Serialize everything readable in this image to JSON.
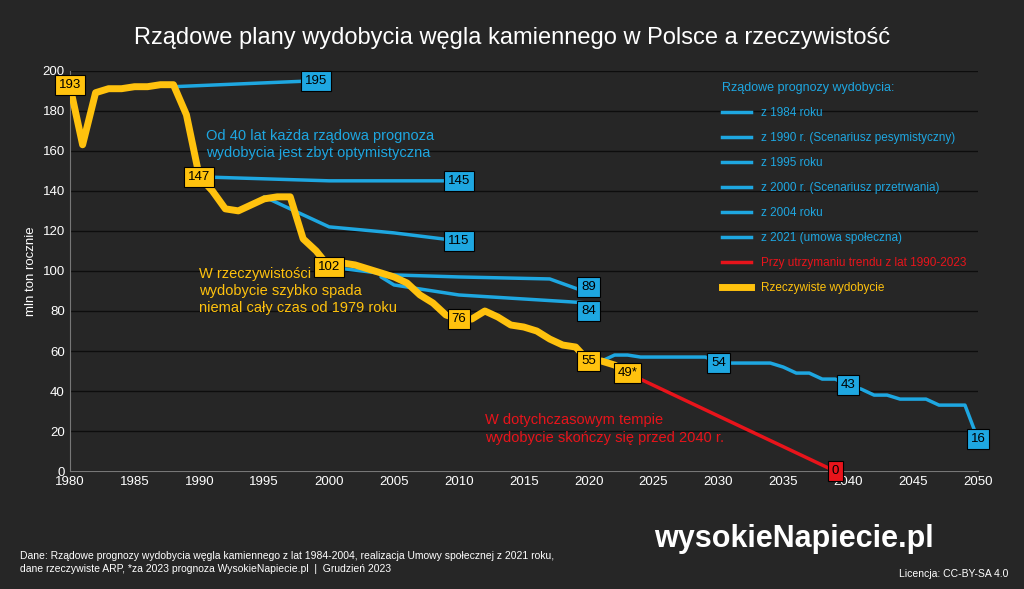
{
  "chart_data": {
    "type": "line",
    "title": "Rządowe plany wydobycia węgla kamiennego w Polsce a rzeczywistość",
    "y_label": "mln ton rocznie",
    "xlim": [
      1980,
      2050
    ],
    "xticks": [
      1980,
      1985,
      1990,
      1995,
      2000,
      2005,
      2010,
      2015,
      2020,
      2025,
      2030,
      2035,
      2040,
      2045,
      2050
    ],
    "ylim": [
      0,
      200
    ],
    "yticks": [
      0,
      20,
      40,
      60,
      80,
      100,
      120,
      140,
      160,
      180,
      200
    ],
    "grid": true,
    "legend": "upper right",
    "legend_title": "Rządowe prognozy wydobycia:",
    "data_labels": true,
    "series": [
      {
        "name": "z 1984 roku",
        "color": "#1ea7e1",
        "x": [
          1988,
          1999
        ],
        "values": [
          192,
          195
        ],
        "value_labels": [
          null,
          "195"
        ]
      },
      {
        "name": "z 1990 r. (Scenariusz pesymistyczny)",
        "color": "#1ea7e1",
        "x": [
          1990,
          1995,
          2000,
          2010
        ],
        "values": [
          147,
          146,
          145,
          145
        ],
        "value_labels": [
          null,
          null,
          null,
          "145"
        ]
      },
      {
        "name": "z 1995 roku",
        "color": "#1ea7e1",
        "x": [
          1995,
          2000,
          2005,
          2010
        ],
        "values": [
          137,
          122,
          119,
          115
        ],
        "value_labels": [
          null,
          null,
          null,
          "115"
        ]
      },
      {
        "name": "z 2000 r. (Scenariusz przetrwania)",
        "color": "#1ea7e1",
        "x": [
          2000,
          2005,
          2010,
          2017,
          2020
        ],
        "values": [
          102,
          98,
          97,
          96,
          89
        ],
        "value_labels": [
          null,
          null,
          null,
          null,
          "89"
        ]
      },
      {
        "name": "z 2004 roku",
        "color": "#1ea7e1",
        "x": [
          2004,
          2005,
          2010,
          2015,
          2020
        ],
        "values": [
          97,
          93,
          88,
          86,
          84
        ],
        "value_labels": [
          null,
          null,
          null,
          null,
          "84"
        ]
      },
      {
        "name": "z 2021 (umowa społeczna)",
        "color": "#1ea7e1",
        "x": [
          2021,
          2022,
          2023,
          2024,
          2025,
          2026,
          2027,
          2028,
          2029,
          2030,
          2031,
          2032,
          2033,
          2034,
          2035,
          2036,
          2037,
          2038,
          2039,
          2040,
          2041,
          2042,
          2043,
          2044,
          2045,
          2046,
          2047,
          2048,
          2049,
          2050
        ],
        "values": [
          55,
          58,
          58,
          57,
          57,
          57,
          57,
          57,
          57,
          54,
          54,
          54,
          54,
          54,
          52,
          49,
          49,
          46,
          46,
          43,
          41,
          38,
          38,
          36,
          36,
          36,
          33,
          33,
          33,
          16
        ],
        "value_labels": [
          null,
          null,
          null,
          null,
          null,
          null,
          null,
          null,
          null,
          "54",
          null,
          null,
          null,
          null,
          null,
          null,
          null,
          null,
          null,
          "43",
          null,
          null,
          null,
          null,
          null,
          null,
          null,
          null,
          null,
          "16"
        ]
      },
      {
        "name": "Przy utrzymaniu trendu z lat 1990-2023",
        "color": "#e8141b",
        "x": [
          2023,
          2039
        ],
        "values": [
          49,
          0
        ],
        "value_labels": [
          null,
          "0"
        ]
      },
      {
        "name": "Rzeczywiste wydobycie",
        "color": "#ffc20e",
        "x": [
          1980,
          1981,
          1982,
          1983,
          1984,
          1985,
          1986,
          1987,
          1988,
          1989,
          1990,
          1991,
          1992,
          1993,
          1994,
          1995,
          1996,
          1997,
          1998,
          1999,
          2000,
          2001,
          2002,
          2003,
          2004,
          2005,
          2006,
          2007,
          2008,
          2009,
          2010,
          2011,
          2012,
          2013,
          2014,
          2015,
          2016,
          2017,
          2018,
          2019,
          2020,
          2021,
          2022,
          2023
        ],
        "values": [
          193,
          163,
          189,
          191,
          191,
          192,
          192,
          193,
          193,
          178,
          147,
          140,
          131,
          130,
          133,
          136,
          137,
          137,
          116,
          110,
          102,
          104,
          103,
          101,
          99,
          97,
          94,
          88,
          84,
          78,
          76,
          76,
          80,
          77,
          73,
          72,
          70,
          66,
          63,
          62,
          55,
          55,
          53,
          49
        ],
        "value_labels": [
          "193",
          null,
          null,
          null,
          null,
          null,
          null,
          null,
          null,
          null,
          "147",
          null,
          null,
          null,
          null,
          null,
          null,
          null,
          null,
          null,
          "102",
          null,
          null,
          null,
          null,
          null,
          null,
          null,
          null,
          null,
          "76",
          null,
          null,
          null,
          null,
          null,
          null,
          null,
          null,
          null,
          "55",
          null,
          null,
          "49*"
        ]
      }
    ],
    "annotations": [
      {
        "text": "Od 40 lat każda rządowa prognoza\nwydobycia jest zbyt optymistyczna",
        "color": "#1ea7e1"
      },
      {
        "text": "W rzeczywistości\nwydobycie szybko spada\nniemal cały czas od 1979 roku",
        "color": "#ffc20e"
      },
      {
        "text": "W dotychczasowym tempie\nwydobycie skończy się przed 2040 r.",
        "color": "#e8141b"
      }
    ],
    "source": "Dane: Rządowe prognozy wydobycia węgla kamiennego z lat 1984-2004, realizacja Umowy społecznej z 2021 roku,\ndane rzeczywiste ARP, *za 2023 prognoza WysokieNapiecie.pl  |  Grudzień 2023",
    "logo": "wysokieNapiecie.pl",
    "license": "Licencja: CC-BY-SA 4.0"
  }
}
